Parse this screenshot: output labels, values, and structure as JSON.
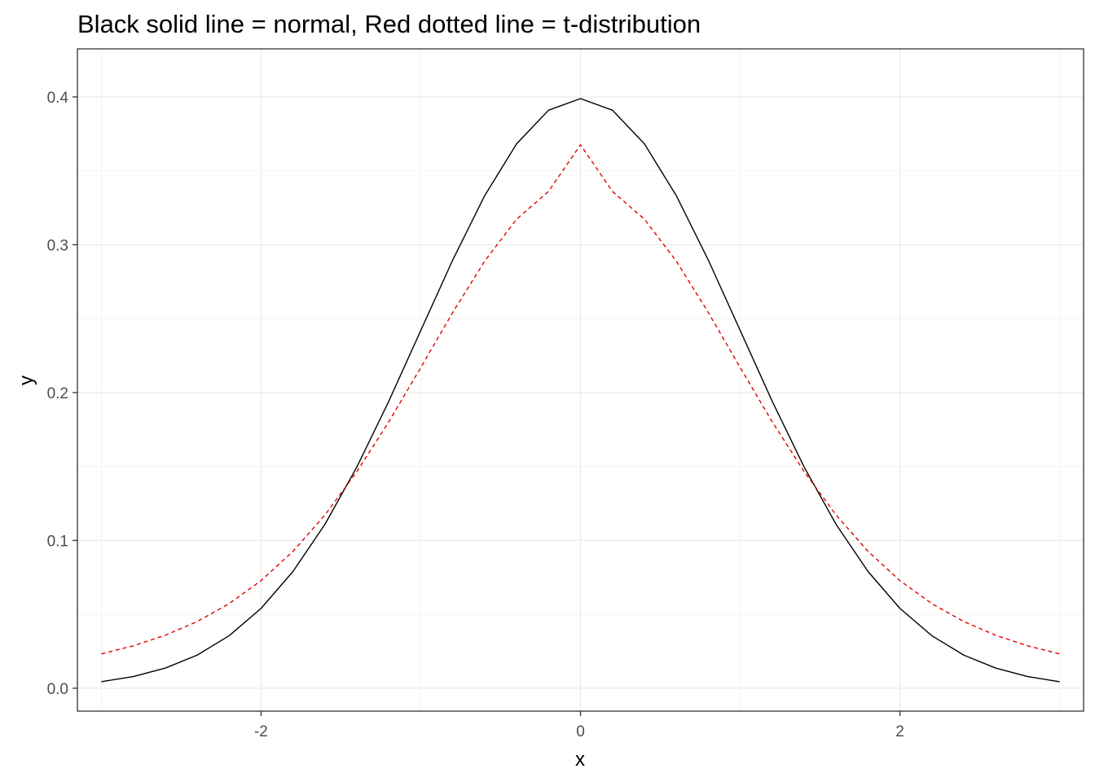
{
  "chart_data": {
    "type": "line",
    "title": "Black solid line = normal, Red dotted line = t-distribution",
    "xlabel": "x",
    "ylabel": "y",
    "xlim": [
      -3.15,
      3.15
    ],
    "ylim": [
      -0.0155,
      0.4325
    ],
    "x_ticks": [
      -2,
      0,
      2
    ],
    "x_tick_labels": [
      "-2",
      "0",
      "2"
    ],
    "y_ticks": [
      0.0,
      0.1,
      0.2,
      0.3,
      0.4
    ],
    "y_tick_labels": [
      "0.0",
      "0.1",
      "0.2",
      "0.3",
      "0.4"
    ],
    "x_minor_ticks": [
      -3,
      -1,
      1,
      3
    ],
    "y_minor_ticks": [
      0.05,
      0.15,
      0.25,
      0.35
    ],
    "grid": true,
    "legend": "none",
    "series": [
      {
        "color": "#000000",
        "line_style": "solid",
        "x": [
          -3.0,
          -2.8,
          -2.6,
          -2.4,
          -2.2,
          -2.0,
          -1.8,
          -1.6,
          -1.4,
          -1.2,
          -1.0,
          -0.8,
          -0.6,
          -0.4,
          -0.2,
          0.0,
          0.2,
          0.4,
          0.6,
          0.8,
          1.0,
          1.2,
          1.4,
          1.6,
          1.8,
          2.0,
          2.2,
          2.4,
          2.6,
          2.8,
          3.0
        ],
        "y": [
          0.0044,
          0.0079,
          0.0136,
          0.0224,
          0.0355,
          0.054,
          0.079,
          0.1109,
          0.1497,
          0.1942,
          0.242,
          0.2897,
          0.3332,
          0.3683,
          0.391,
          0.3989,
          0.391,
          0.3683,
          0.3332,
          0.2897,
          0.242,
          0.1942,
          0.1497,
          0.1109,
          0.079,
          0.054,
          0.0355,
          0.0224,
          0.0136,
          0.0079,
          0.0044
        ]
      },
      {
        "color": "#e00000",
        "line_style": "dashed",
        "x": [
          -3.0,
          -2.8,
          -2.6,
          -2.4,
          -2.2,
          -2.0,
          -1.8,
          -1.6,
          -1.4,
          -1.2,
          -1.0,
          -0.8,
          -0.6,
          -0.4,
          -0.2,
          0.0,
          0.2,
          0.4,
          0.6,
          0.8,
          1.0,
          1.2,
          1.4,
          1.6,
          1.8,
          2.0,
          2.2,
          2.4,
          2.6,
          2.8,
          3.0
        ],
        "y": [
          0.0232,
          0.0287,
          0.0358,
          0.0451,
          0.0572,
          0.0728,
          0.0926,
          0.1172,
          0.1466,
          0.1803,
          0.2169,
          0.2542,
          0.2889,
          0.3173,
          0.3361,
          0.3676,
          0.3361,
          0.3173,
          0.2889,
          0.2542,
          0.2169,
          0.1803,
          0.1466,
          0.1172,
          0.0926,
          0.0728,
          0.0572,
          0.0451,
          0.0358,
          0.0287,
          0.0232
        ]
      }
    ]
  }
}
